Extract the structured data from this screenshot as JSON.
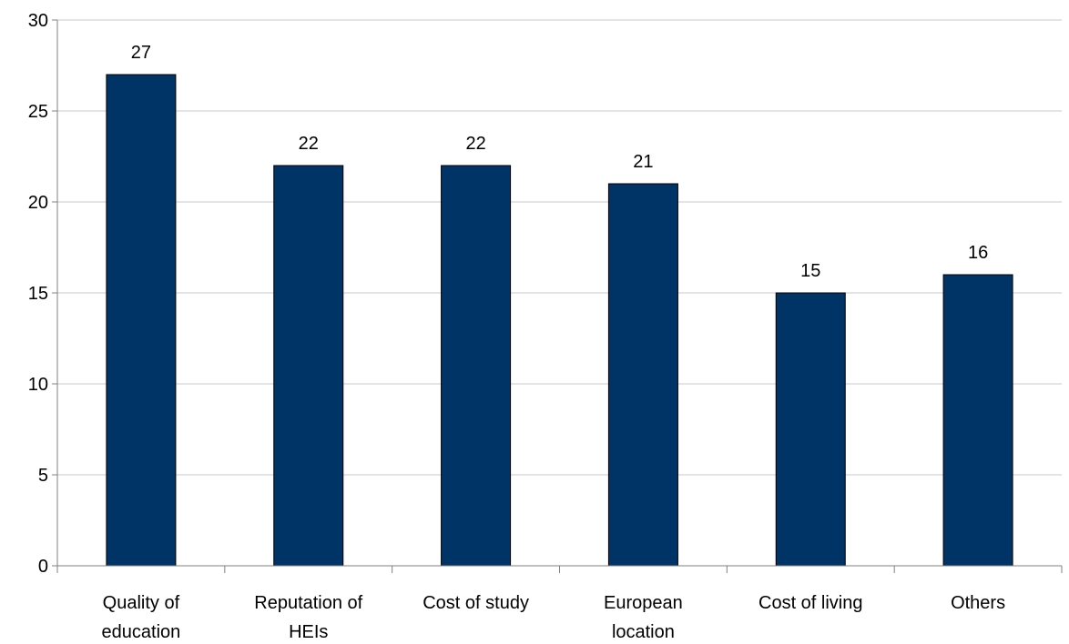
{
  "chart_data": {
    "type": "bar",
    "title": "",
    "xlabel": "",
    "ylabel": "",
    "categories": [
      [
        "Quality of",
        "education"
      ],
      [
        "Reputation of",
        "HEIs"
      ],
      [
        "Cost of study"
      ],
      [
        "European",
        "location"
      ],
      [
        "Cost of living"
      ],
      [
        "Others"
      ]
    ],
    "values": [
      27,
      22,
      22,
      21,
      15,
      16
    ],
    "ylim": [
      0,
      30
    ],
    "yticks": [
      0,
      5,
      10,
      15,
      20,
      25,
      30
    ],
    "grid": true,
    "legend": "none",
    "bar_color": "#003366"
  }
}
